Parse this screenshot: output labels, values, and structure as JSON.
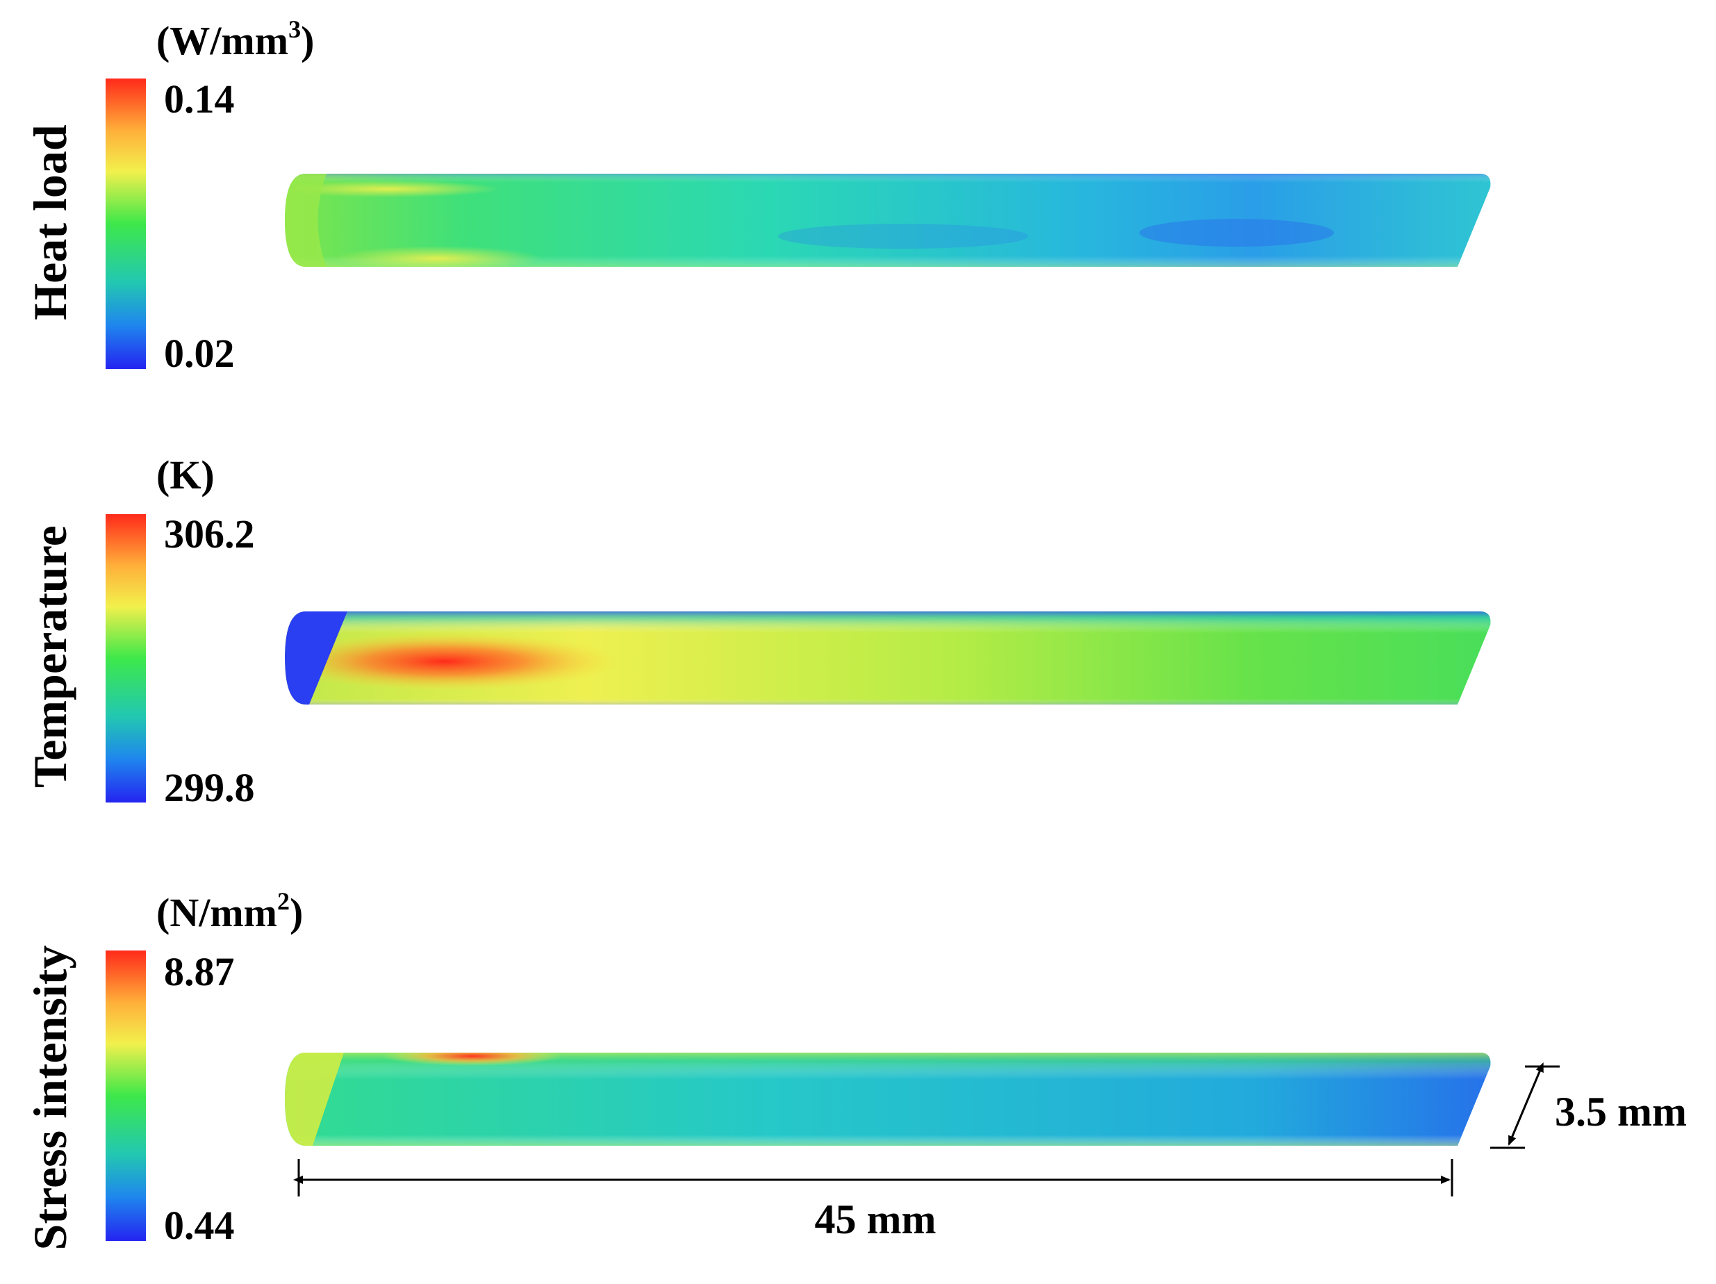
{
  "panels": [
    {
      "id": "heat-load",
      "label": "Heat load",
      "unit_base": "(W/mm",
      "unit_sup": "3",
      "unit_close": ")",
      "max_label": "0.14",
      "min_label": "0.02"
    },
    {
      "id": "temperature",
      "label": "Temperature",
      "unit_base": "(K)",
      "unit_sup": "",
      "unit_close": "",
      "max_label": "306.2",
      "min_label": "299.8"
    },
    {
      "id": "stress-intensity",
      "label": "Stress intensity",
      "unit_base": "(N/mm",
      "unit_sup": "2",
      "unit_close": ")",
      "max_label": "8.87",
      "min_label": "0.44"
    }
  ],
  "dimensions": {
    "length_label": "45 mm",
    "diameter_label": "3.5 mm"
  },
  "colormap": [
    "#2a2ef5",
    "#1f7ff0",
    "#22c8c8",
    "#2ee85a",
    "#86e83a",
    "#e6f04a",
    "#ffbd3a",
    "#ff3b22"
  ]
}
